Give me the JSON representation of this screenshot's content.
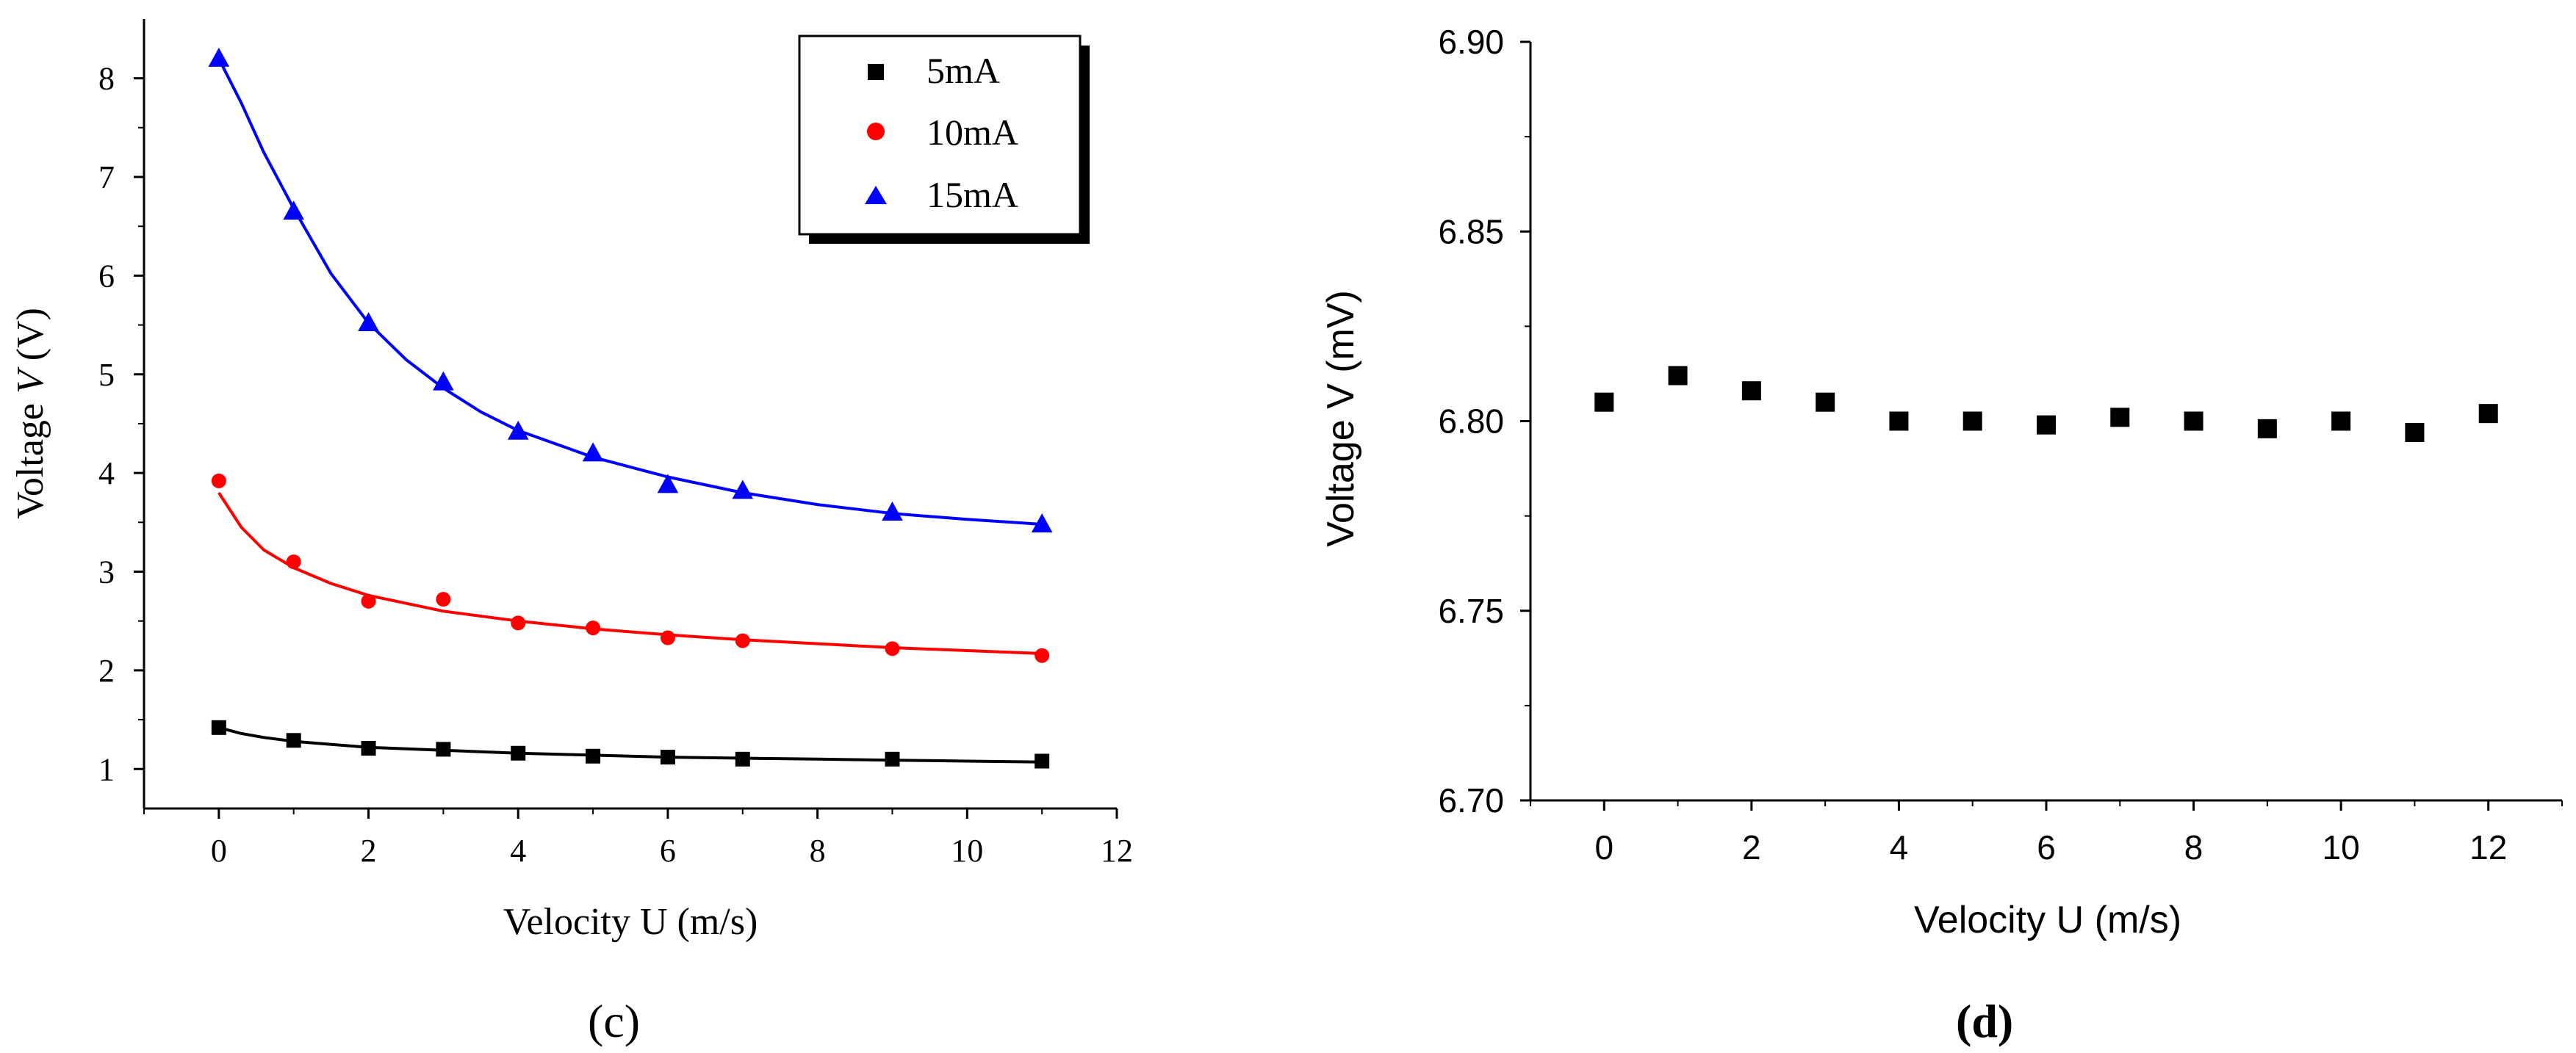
{
  "chart_data": [
    {
      "type": "scatter",
      "panel_label": "(c)",
      "xlabel": "Velocity U (m/s)",
      "ylabel_prefix": "Voltage ",
      "ylabel_var": "V",
      "ylabel_suffix": " (V)",
      "xlim": [
        -1,
        12
      ],
      "ylim": [
        0.6,
        8.6
      ],
      "xticks": [
        0,
        2,
        4,
        6,
        8,
        10,
        12
      ],
      "yticks": [
        1,
        2,
        3,
        4,
        5,
        6,
        7,
        8
      ],
      "legend_position": "top-right",
      "series": [
        {
          "name": "5mA",
          "marker": "square",
          "color": "#000000",
          "x": [
            0,
            1,
            2,
            3,
            4,
            5,
            6,
            7,
            9,
            11
          ],
          "y": [
            1.42,
            1.29,
            1.21,
            1.2,
            1.16,
            1.13,
            1.12,
            1.1,
            1.1,
            1.08
          ],
          "fit": [
            [
              0,
              1.42
            ],
            [
              0.3,
              1.36
            ],
            [
              0.6,
              1.32
            ],
            [
              1,
              1.28
            ],
            [
              1.5,
              1.25
            ],
            [
              2,
              1.22
            ],
            [
              3,
              1.19
            ],
            [
              4,
              1.16
            ],
            [
              5,
              1.14
            ],
            [
              6,
              1.12
            ],
            [
              7,
              1.11
            ],
            [
              8,
              1.1
            ],
            [
              9,
              1.09
            ],
            [
              10,
              1.08
            ],
            [
              11,
              1.07
            ]
          ]
        },
        {
          "name": "10mA",
          "marker": "circle",
          "color": "#ff0000",
          "x": [
            0,
            1,
            2,
            3,
            4,
            5,
            6,
            7,
            9,
            11
          ],
          "y": [
            3.92,
            3.1,
            2.7,
            2.72,
            2.48,
            2.43,
            2.33,
            2.3,
            2.22,
            2.15
          ],
          "fit": [
            [
              0,
              3.8
            ],
            [
              0.3,
              3.45
            ],
            [
              0.6,
              3.22
            ],
            [
              1,
              3.04
            ],
            [
              1.5,
              2.88
            ],
            [
              2,
              2.76
            ],
            [
              3,
              2.6
            ],
            [
              4,
              2.5
            ],
            [
              5,
              2.42
            ],
            [
              6,
              2.36
            ],
            [
              7,
              2.31
            ],
            [
              8,
              2.27
            ],
            [
              9,
              2.23
            ],
            [
              10,
              2.2
            ],
            [
              11,
              2.17
            ]
          ]
        },
        {
          "name": "15mA",
          "marker": "triangle",
          "color": "#0000ff",
          "x": [
            0,
            1,
            2,
            3,
            4,
            5,
            6,
            7,
            9,
            11
          ],
          "y": [
            8.2,
            6.65,
            5.52,
            4.92,
            4.42,
            4.2,
            3.88,
            3.82,
            3.6,
            3.48
          ],
          "fit": [
            [
              0,
              8.2
            ],
            [
              0.3,
              7.75
            ],
            [
              0.6,
              7.25
            ],
            [
              1,
              6.68
            ],
            [
              1.5,
              6.02
            ],
            [
              2,
              5.52
            ],
            [
              2.5,
              5.15
            ],
            [
              3,
              4.86
            ],
            [
              3.5,
              4.62
            ],
            [
              4,
              4.43
            ],
            [
              5,
              4.16
            ],
            [
              6,
              3.96
            ],
            [
              7,
              3.8
            ],
            [
              8,
              3.68
            ],
            [
              9,
              3.59
            ],
            [
              10,
              3.53
            ],
            [
              11,
              3.48
            ]
          ]
        }
      ]
    },
    {
      "type": "scatter",
      "panel_label": "(d)",
      "xlabel": "Velocity U (m/s)",
      "ylabel": "Voltage V (mV)",
      "xlim": [
        -1,
        13
      ],
      "ylim": [
        6.7,
        6.9
      ],
      "xticks": [
        0,
        2,
        4,
        6,
        8,
        10,
        12
      ],
      "yticks": [
        "6.70",
        "6.75",
        "6.80",
        "6.85",
        "6.90"
      ],
      "series": [
        {
          "name": "Voltage",
          "marker": "square",
          "color": "#000000",
          "x": [
            0,
            1,
            2,
            3,
            4,
            5,
            6,
            7,
            8,
            9,
            10,
            11,
            12
          ],
          "y": [
            6.805,
            6.812,
            6.808,
            6.805,
            6.8,
            6.8,
            6.799,
            6.801,
            6.8,
            6.798,
            6.8,
            6.797,
            6.802
          ]
        }
      ]
    }
  ]
}
